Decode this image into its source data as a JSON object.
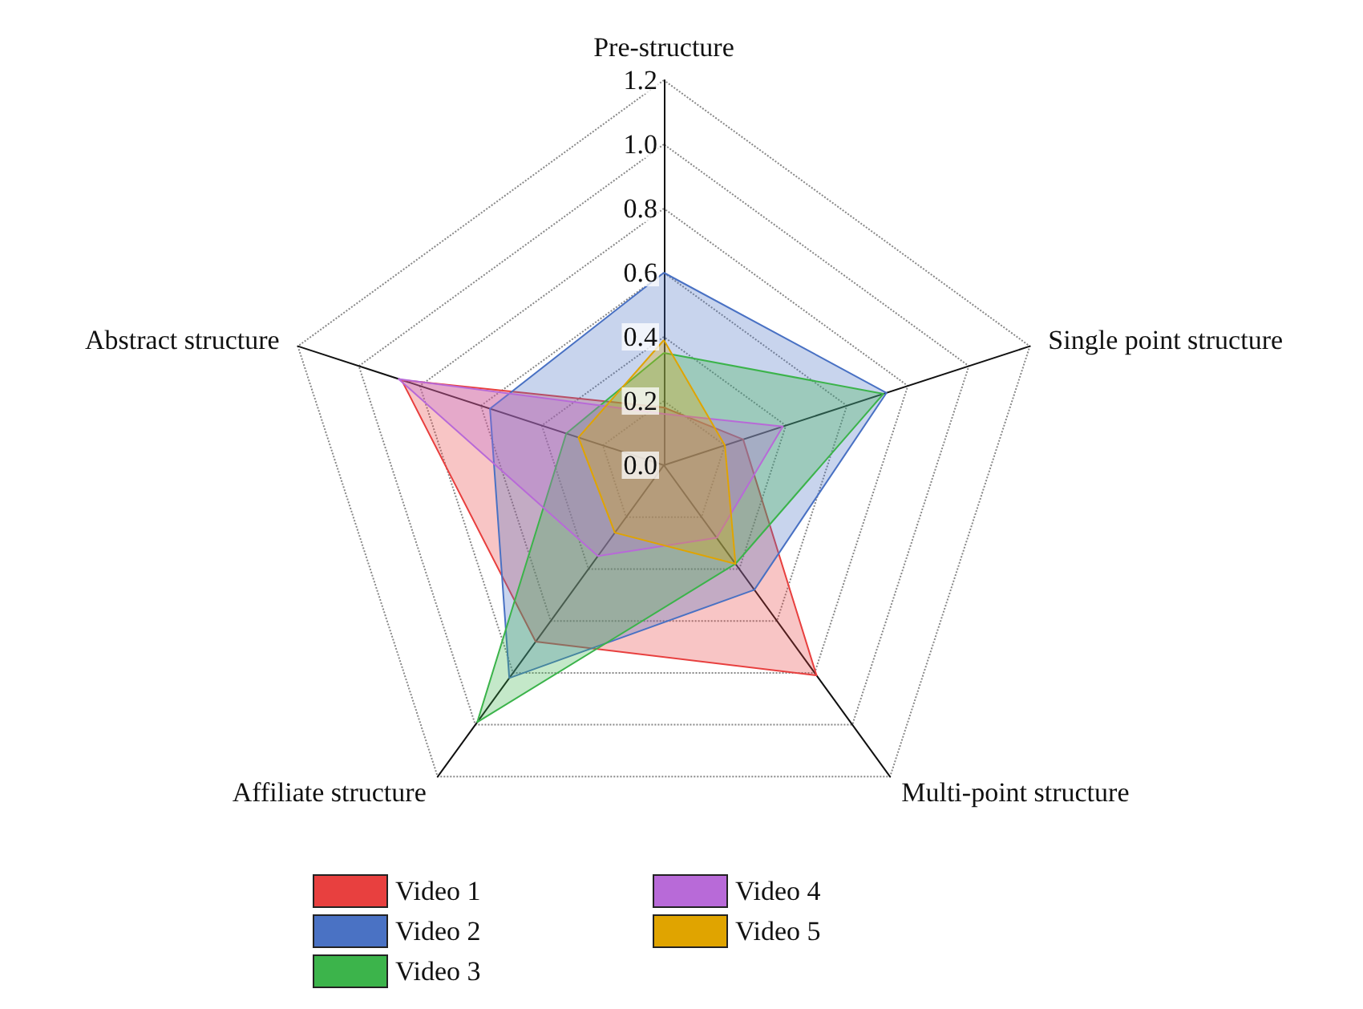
{
  "chart_data": {
    "type": "radar",
    "categories": [
      "Pre-structure",
      "Single point structure",
      "Multi-point structure",
      "Affiliate structure",
      "Abstract structure"
    ],
    "ylim": [
      0,
      1.2
    ],
    "yticks": [
      {
        "value": 0,
        "label": "0.0"
      },
      0.2,
      0.4,
      0.6,
      0.8,
      {
        "value": 1,
        "label": "1.0"
      },
      1.2
    ],
    "grid": true,
    "legend": "bottom",
    "series": [
      {
        "name": "Video 1",
        "color": "#e8403f",
        "values": [
          0.18,
          0.26,
          0.81,
          0.68,
          0.86
        ]
      },
      {
        "name": "Video 2",
        "color": "#4a72c4",
        "values": [
          0.6,
          0.73,
          0.48,
          0.82,
          0.57
        ]
      },
      {
        "name": "Video 3",
        "color": "#3cb44b",
        "values": [
          0.35,
          0.72,
          0.38,
          0.99,
          0.32
        ]
      },
      {
        "name": "Video 4",
        "color": "#b86ad8",
        "values": [
          0.16,
          0.39,
          0.28,
          0.35,
          0.87
        ]
      },
      {
        "name": "Video 5",
        "color": "#e0a400",
        "values": [
          0.39,
          0.2,
          0.38,
          0.26,
          0.28
        ]
      }
    ]
  }
}
